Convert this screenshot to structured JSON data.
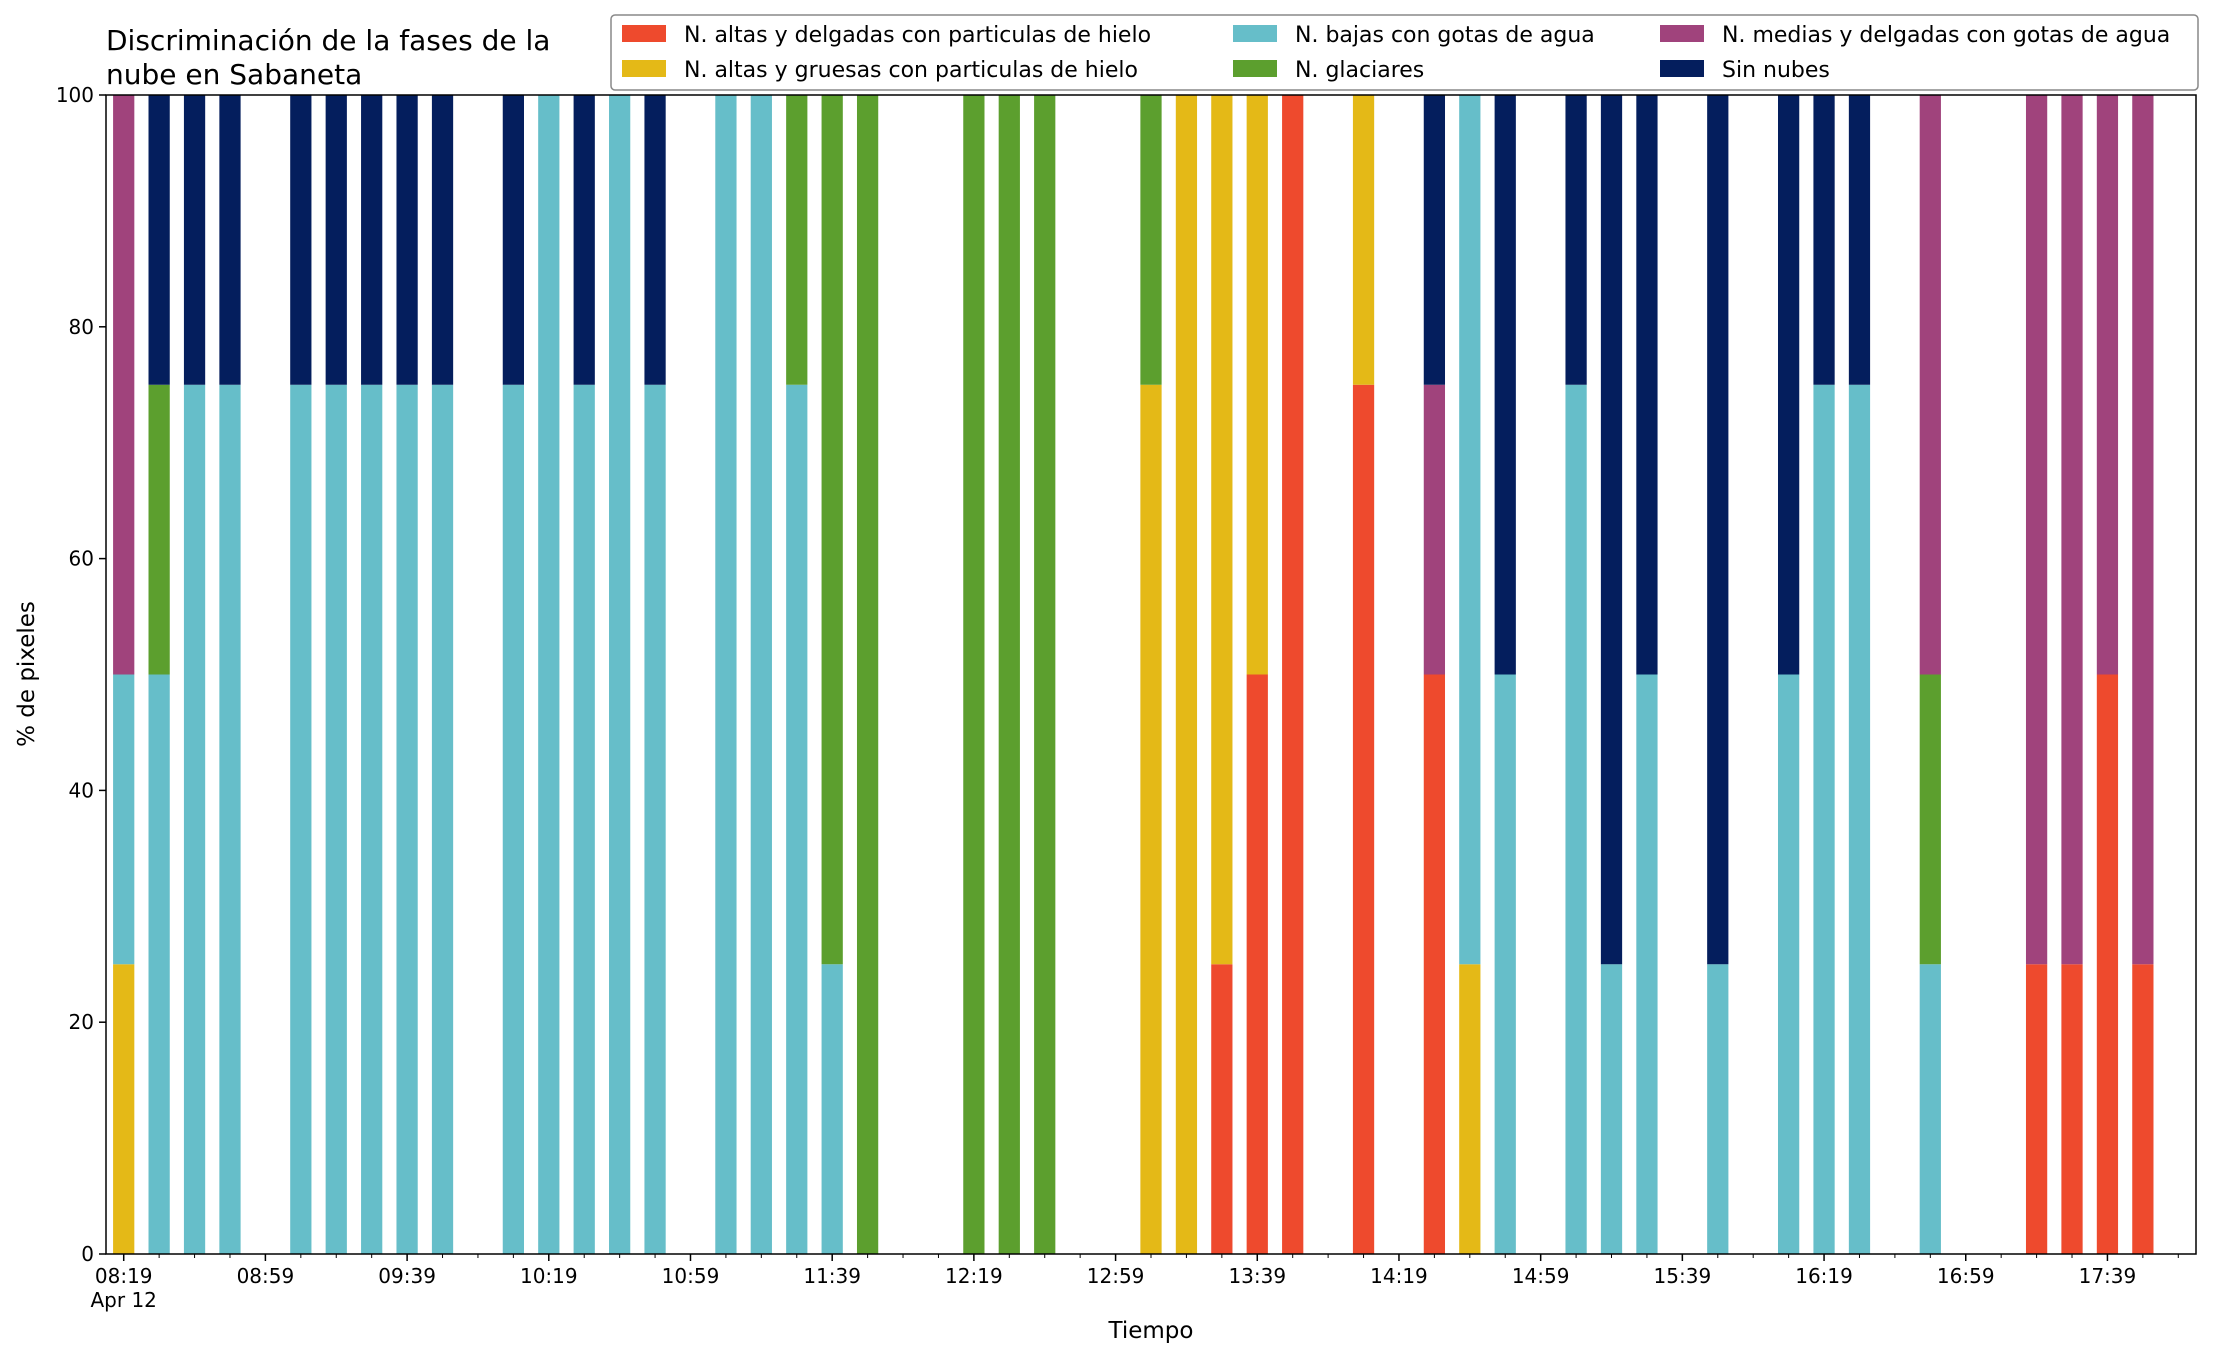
{
  "chart_data": {
    "type": "bar",
    "stacked": true,
    "title_lines": [
      "Discriminación de la fases de la",
      "nube en Sabaneta"
    ],
    "xlabel": "Tiempo",
    "ylabel": "% de pixeles",
    "ylim": [
      0,
      100
    ],
    "yticks": [
      0,
      20,
      40,
      60,
      80,
      100
    ],
    "xlim": [
      "08:14",
      "18:04"
    ],
    "x_major_ticks": [
      "08:19",
      "08:59",
      "09:39",
      "10:19",
      "10:59",
      "11:39",
      "12:19",
      "12:59",
      "13:39",
      "14:19",
      "14:59",
      "15:39",
      "16:19",
      "16:59",
      "17:39"
    ],
    "x_tick_labels": [
      "08:19",
      "08:59",
      "09:39",
      "10:19",
      "10:59",
      "11:39",
      "12:19",
      "12:59",
      "13:39",
      "14:19",
      "14:59",
      "15:39",
      "16:19",
      "16:59",
      "17:39"
    ],
    "x_minor_tick_interval_min": 10,
    "x_date_label": "Apr 12",
    "grid": false,
    "legend_position": "top-right",
    "series": [
      {
        "name": "N. altas y delgadas con particulas de hielo",
        "color": "#ee4a2d"
      },
      {
        "name": "N. altas y gruesas con particulas de hielo",
        "color": "#e4b917"
      },
      {
        "name": "N. bajas con gotas de agua",
        "color": "#66bec9"
      },
      {
        "name": "N. glaciares",
        "color": "#5c9f2e"
      },
      {
        "name": "N. medias y delgadas con gotas de agua",
        "color": "#a0437c"
      },
      {
        "name": "Sin nubes",
        "color": "#041e5d"
      }
    ],
    "x": [
      "08:19",
      "08:29",
      "08:39",
      "08:49",
      "08:59",
      "09:09",
      "09:19",
      "09:29",
      "09:39",
      "09:49",
      "09:59",
      "10:09",
      "10:19",
      "10:29",
      "10:39",
      "10:49",
      "10:59",
      "11:09",
      "11:19",
      "11:29",
      "11:39",
      "11:49",
      "11:59",
      "12:09",
      "12:19",
      "12:29",
      "12:39",
      "12:49",
      "12:59",
      "13:09",
      "13:19",
      "13:29",
      "13:39",
      "13:49",
      "13:59",
      "14:09",
      "14:19",
      "14:29",
      "14:39",
      "14:49",
      "14:59",
      "15:09",
      "15:19",
      "15:29",
      "15:39",
      "15:49",
      "15:59",
      "16:09",
      "16:19",
      "16:29",
      "16:39",
      "16:49",
      "16:59",
      "17:09",
      "17:19",
      "17:29",
      "17:39",
      "17:49"
    ],
    "values": [
      [
        0,
        25,
        25,
        0,
        50,
        0
      ],
      [
        0,
        0,
        50,
        25,
        0,
        25
      ],
      [
        0,
        0,
        75,
        0,
        0,
        25
      ],
      [
        0,
        0,
        75,
        0,
        0,
        25
      ],
      [
        0,
        0,
        0,
        0,
        0,
        0
      ],
      [
        0,
        0,
        75,
        0,
        0,
        25
      ],
      [
        0,
        0,
        75,
        0,
        0,
        25
      ],
      [
        0,
        0,
        75,
        0,
        0,
        25
      ],
      [
        0,
        0,
        75,
        0,
        0,
        25
      ],
      [
        0,
        0,
        75,
        0,
        0,
        25
      ],
      [
        0,
        0,
        0,
        0,
        0,
        0
      ],
      [
        0,
        0,
        75,
        0,
        0,
        25
      ],
      [
        0,
        0,
        100,
        0,
        0,
        0
      ],
      [
        0,
        0,
        75,
        0,
        0,
        25
      ],
      [
        0,
        0,
        100,
        0,
        0,
        0
      ],
      [
        0,
        0,
        75,
        0,
        0,
        25
      ],
      [
        0,
        0,
        0,
        0,
        0,
        0
      ],
      [
        0,
        0,
        100,
        0,
        0,
        0
      ],
      [
        0,
        0,
        100,
        0,
        0,
        0
      ],
      [
        0,
        0,
        75,
        25,
        0,
        0
      ],
      [
        0,
        0,
        25,
        75,
        0,
        0
      ],
      [
        0,
        0,
        0,
        100,
        0,
        0
      ],
      [
        0,
        0,
        0,
        0,
        0,
        0
      ],
      [
        0,
        0,
        0,
        0,
        0,
        0
      ],
      [
        0,
        0,
        0,
        100,
        0,
        0
      ],
      [
        0,
        0,
        0,
        100,
        0,
        0
      ],
      [
        0,
        0,
        0,
        100,
        0,
        0
      ],
      [
        0,
        0,
        0,
        0,
        0,
        0
      ],
      [
        0,
        0,
        0,
        0,
        0,
        0
      ],
      [
        0,
        75,
        0,
        25,
        0,
        0
      ],
      [
        0,
        100,
        0,
        0,
        0,
        0
      ],
      [
        25,
        75,
        0,
        0,
        0,
        0
      ],
      [
        50,
        50,
        0,
        0,
        0,
        0
      ],
      [
        100,
        0,
        0,
        0,
        0,
        0
      ],
      [
        0,
        0,
        0,
        0,
        0,
        0
      ],
      [
        75,
        25,
        0,
        0,
        0,
        0
      ],
      [
        0,
        0,
        0,
        0,
        0,
        0
      ],
      [
        50,
        0,
        0,
        0,
        25,
        25
      ],
      [
        0,
        25,
        75,
        0,
        0,
        0
      ],
      [
        0,
        0,
        50,
        0,
        0,
        50
      ],
      [
        0,
        0,
        0,
        0,
        0,
        0
      ],
      [
        0,
        0,
        75,
        0,
        0,
        25
      ],
      [
        0,
        0,
        25,
        0,
        0,
        75
      ],
      [
        0,
        0,
        50,
        0,
        0,
        50
      ],
      [
        0,
        0,
        0,
        0,
        0,
        0
      ],
      [
        0,
        0,
        25,
        0,
        0,
        75
      ],
      [
        0,
        0,
        0,
        0,
        0,
        0
      ],
      [
        0,
        0,
        50,
        0,
        0,
        50
      ],
      [
        0,
        0,
        75,
        0,
        0,
        25
      ],
      [
        0,
        0,
        75,
        0,
        0,
        25
      ],
      [
        0,
        0,
        0,
        0,
        0,
        0
      ],
      [
        0,
        0,
        25,
        25,
        50,
        0
      ],
      [
        0,
        0,
        0,
        0,
        0,
        0
      ],
      [
        0,
        0,
        0,
        0,
        0,
        0
      ],
      [
        25,
        0,
        0,
        0,
        75,
        0
      ],
      [
        25,
        0,
        0,
        0,
        75,
        0
      ],
      [
        50,
        0,
        0,
        0,
        50,
        0
      ],
      [
        25,
        0,
        0,
        0,
        75,
        0
      ]
    ]
  }
}
